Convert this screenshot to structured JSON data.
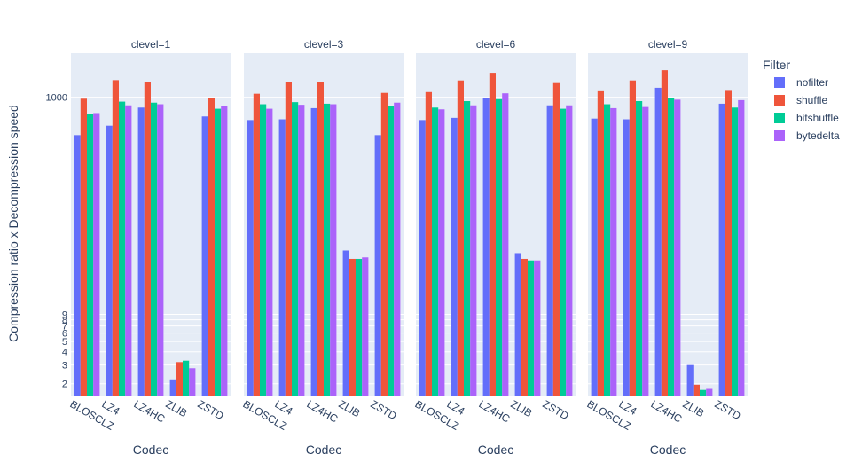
{
  "chart_data": {
    "type": "bar",
    "ylabel": "Compression ratio x Decompression speed",
    "xlabel": "Codec",
    "yscale": "log",
    "ylim": [
      1.55,
      2600
    ],
    "y_tick_values": [
      2,
      3,
      4,
      5,
      6,
      7,
      8,
      9,
      1000
    ],
    "y_tick_labels": [
      "2",
      "3",
      "4",
      "5",
      "6",
      "7",
      "8",
      "9",
      "1000"
    ],
    "categories": [
      "BLOSCLZ",
      "LZ4",
      "LZ4HC",
      "ZLIB",
      "ZSTD"
    ],
    "legend": {
      "title": "Filter",
      "position": "right"
    },
    "series_names": [
      "nofilter",
      "shuffle",
      "bitshuffle",
      "bytedelta"
    ],
    "colors": [
      "#636efa",
      "#ef553b",
      "#00cc96",
      "#ab63fa"
    ],
    "panels": [
      {
        "title": "clevel=1",
        "series": [
          {
            "name": "nofilter",
            "values": [
              440,
              540,
              800,
              2.2,
              660
            ]
          },
          {
            "name": "shuffle",
            "values": [
              970,
              1450,
              1390,
              3.2,
              990
            ]
          },
          {
            "name": "bitshuffle",
            "values": [
              690,
              910,
              890,
              3.3,
              780
            ]
          },
          {
            "name": "bytedelta",
            "values": [
              710,
              840,
              860,
              2.8,
              820
            ]
          }
        ]
      },
      {
        "title": "clevel=3",
        "series": [
          {
            "name": "nofilter",
            "values": [
              610,
              620,
              790,
              36,
              440
            ]
          },
          {
            "name": "shuffle",
            "values": [
              1080,
              1390,
              1390,
              30,
              1100
            ]
          },
          {
            "name": "bitshuffle",
            "values": [
              860,
              900,
              870,
              30,
              820
            ]
          },
          {
            "name": "bytedelta",
            "values": [
              780,
              850,
              860,
              31,
              890
            ]
          }
        ]
      },
      {
        "title": "clevel=6",
        "series": [
          {
            "name": "nofilter",
            "values": [
              610,
              640,
              990,
              34,
              840
            ]
          },
          {
            "name": "shuffle",
            "values": [
              1120,
              1440,
              1700,
              30,
              1360
            ]
          },
          {
            "name": "bitshuffle",
            "values": [
              800,
              920,
              960,
              29,
              780
            ]
          },
          {
            "name": "bytedelta",
            "values": [
              770,
              840,
              1090,
              29,
              840
            ]
          }
        ]
      },
      {
        "title": "clevel=9",
        "series": [
          {
            "name": "nofilter",
            "values": [
              630,
              620,
              1230,
              3.0,
              870
            ]
          },
          {
            "name": "shuffle",
            "values": [
              1140,
              1440,
              1800,
              1.96,
              1150
            ]
          },
          {
            "name": "bitshuffle",
            "values": [
              860,
              920,
              990,
              1.75,
              800
            ]
          },
          {
            "name": "bytedelta",
            "values": [
              790,
              810,
              950,
              1.79,
              940
            ]
          }
        ]
      }
    ]
  }
}
